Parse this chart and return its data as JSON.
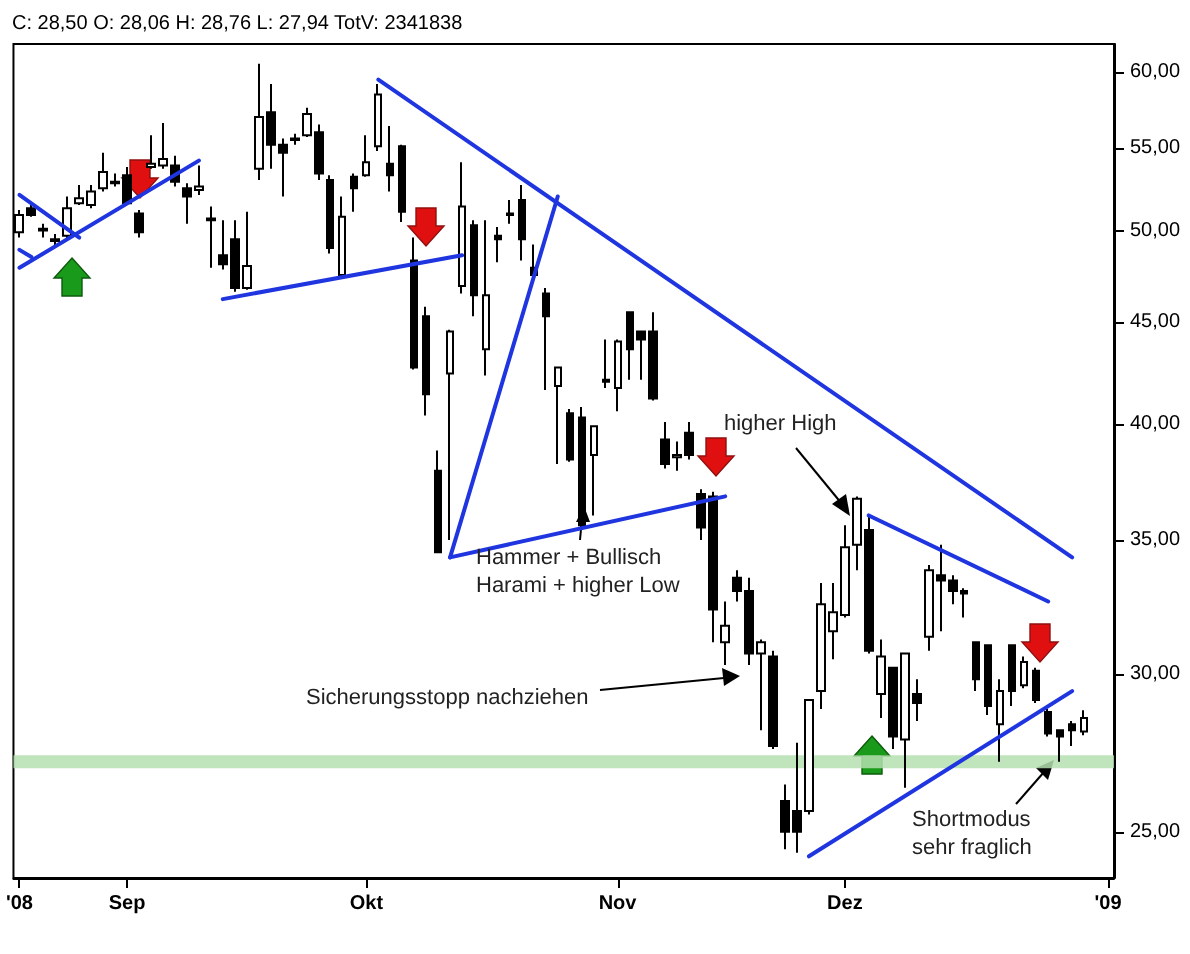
{
  "chart_data": {
    "type": "candlestick",
    "title": "C: 28,50 O: 28,06 H: 28,76 L: 27,94 TotV: 2341838",
    "categories": [
      "'08",
      null,
      null,
      null,
      null,
      null,
      null,
      null,
      null,
      "Sep",
      null,
      null,
      null,
      null,
      null,
      null,
      null,
      null,
      null,
      null,
      null,
      null,
      null,
      null,
      null,
      null,
      null,
      null,
      null,
      "Okt",
      null,
      null,
      null,
      null,
      null,
      null,
      null,
      null,
      null,
      null,
      null,
      null,
      null,
      null,
      null,
      null,
      null,
      null,
      null,
      null,
      "Nov",
      null,
      null,
      null,
      null,
      null,
      null,
      null,
      null,
      null,
      null,
      null,
      null,
      null,
      null,
      null,
      null,
      null,
      null,
      "Dez",
      null,
      null,
      null,
      null,
      null,
      null,
      null,
      null,
      null,
      null,
      null,
      null,
      null,
      null,
      null,
      null,
      null,
      null,
      null,
      null,
      null,
      "'09"
    ],
    "ohlc": [
      [
        49.9,
        51.2,
        49.6,
        50.9
      ],
      [
        51.3,
        51.5,
        50.8,
        50.9
      ],
      [
        50.1,
        50.4,
        49.6,
        50.0
      ],
      [
        49.5,
        49.8,
        49.0,
        49.4
      ],
      [
        49.7,
        52.0,
        49.5,
        51.3
      ],
      [
        51.6,
        52.7,
        51.5,
        51.9
      ],
      [
        51.5,
        52.7,
        51.3,
        52.3
      ],
      [
        52.5,
        54.7,
        52.3,
        53.5
      ],
      [
        52.8,
        53.4,
        52.6,
        52.9
      ],
      [
        53.3,
        53.8,
        51.5,
        51.6
      ],
      [
        51.0,
        51.2,
        49.6,
        49.9
      ],
      [
        53.8,
        55.8,
        53.7,
        54.0
      ],
      [
        53.9,
        56.6,
        53.7,
        54.3
      ],
      [
        53.9,
        54.5,
        52.6,
        52.9
      ],
      [
        52.5,
        52.8,
        50.4,
        52.0
      ],
      [
        52.4,
        53.9,
        52.1,
        52.6
      ],
      [
        50.7,
        51.4,
        47.9,
        50.6
      ],
      [
        48.6,
        50.6,
        47.8,
        48.1
      ],
      [
        49.5,
        50.6,
        46.6,
        46.8
      ],
      [
        46.8,
        51.1,
        46.7,
        48.0
      ],
      [
        53.7,
        60.6,
        53.0,
        57.0
      ],
      [
        57.3,
        59.2,
        53.7,
        55.2
      ],
      [
        55.2,
        55.6,
        52.0,
        54.7
      ],
      [
        55.5,
        55.9,
        55.2,
        55.6
      ],
      [
        55.8,
        57.6,
        55.7,
        57.2
      ],
      [
        56.0,
        56.5,
        53.0,
        53.4
      ],
      [
        53.0,
        53.3,
        48.7,
        49.0
      ],
      [
        47.5,
        52.0,
        47.3,
        50.8
      ],
      [
        53.2,
        53.4,
        51.1,
        52.5
      ],
      [
        53.3,
        55.8,
        53.2,
        54.1
      ],
      [
        55.1,
        59.2,
        54.8,
        58.5
      ],
      [
        54.0,
        56.4,
        52.3,
        53.3
      ],
      [
        55.1,
        55.2,
        50.5,
        51.1
      ],
      [
        48.3,
        49.6,
        42.6,
        42.7
      ],
      [
        45.3,
        45.8,
        40.4,
        41.4
      ],
      [
        37.9,
        38.8,
        34.5,
        34.5
      ],
      [
        42.4,
        44.6,
        35.0,
        44.5
      ],
      [
        46.9,
        54.1,
        46.5,
        51.4
      ],
      [
        50.3,
        50.6,
        45.3,
        46.4
      ],
      [
        43.6,
        50.6,
        42.3,
        46.4
      ],
      [
        49.7,
        50.2,
        48.2,
        49.5
      ],
      [
        51.0,
        51.8,
        50.4,
        50.9
      ],
      [
        51.8,
        52.7,
        48.3,
        49.5
      ],
      [
        47.9,
        49.2,
        47.3,
        47.5
      ],
      [
        46.5,
        46.8,
        41.6,
        45.3
      ],
      [
        41.8,
        42.7,
        38.2,
        42.7
      ],
      [
        40.5,
        40.7,
        38.3,
        38.4
      ],
      [
        40.3,
        40.8,
        35.5,
        35.6
      ],
      [
        38.6,
        39.9,
        36.0,
        39.9
      ],
      [
        42.1,
        44.1,
        41.7,
        42.0
      ],
      [
        41.7,
        44.1,
        40.6,
        44.0
      ],
      [
        45.5,
        45.5,
        42.1,
        43.6
      ],
      [
        44.5,
        44.5,
        42.1,
        44.1
      ],
      [
        44.5,
        45.5,
        41.1,
        41.2
      ],
      [
        39.3,
        40.1,
        38.0,
        38.2
      ],
      [
        38.5,
        39.2,
        37.9,
        38.6
      ],
      [
        39.6,
        40.1,
        38.4,
        38.6
      ],
      [
        36.9,
        37.1,
        35.0,
        35.5
      ],
      [
        36.8,
        37.0,
        31.1,
        32.3
      ],
      [
        31.1,
        32.6,
        30.3,
        31.7
      ],
      [
        33.5,
        33.8,
        32.6,
        33.0
      ],
      [
        33.0,
        33.5,
        30.3,
        30.7
      ],
      [
        30.7,
        31.2,
        28.1,
        31.1
      ],
      [
        30.6,
        30.8,
        27.5,
        27.6
      ],
      [
        25.9,
        26.4,
        24.5,
        25.0
      ],
      [
        25.6,
        27.7,
        24.4,
        25.0
      ],
      [
        25.6,
        29.1,
        25.5,
        29.1
      ],
      [
        29.4,
        33.3,
        28.8,
        32.5
      ],
      [
        31.5,
        33.3,
        30.5,
        32.2
      ],
      [
        32.1,
        35.6,
        32.0,
        34.7
      ],
      [
        34.8,
        36.8,
        33.8,
        36.7
      ],
      [
        35.4,
        36.0,
        30.7,
        30.8
      ],
      [
        29.3,
        31.2,
        28.5,
        30.6
      ],
      [
        30.2,
        30.2,
        27.5,
        27.9
      ],
      [
        27.8,
        30.7,
        26.3,
        30.7
      ],
      [
        29.3,
        29.8,
        28.4,
        29.0
      ],
      [
        31.3,
        34.0,
        30.8,
        33.8
      ],
      [
        33.6,
        34.8,
        31.5,
        33.4
      ],
      [
        33.4,
        33.6,
        32.5,
        33.0
      ],
      [
        33.0,
        33.1,
        32.0,
        32.9
      ],
      [
        31.1,
        31.1,
        29.4,
        29.8
      ],
      [
        31.0,
        31.0,
        28.6,
        28.9
      ],
      [
        28.3,
        29.8,
        27.1,
        29.4
      ],
      [
        31.0,
        31.0,
        28.9,
        29.4
      ],
      [
        29.6,
        30.6,
        29.5,
        30.4
      ],
      [
        30.1,
        30.2,
        29.0,
        29.1
      ],
      [
        28.7,
        28.8,
        27.9,
        28.0
      ],
      [
        28.1,
        28.1,
        27.1,
        27.9
      ],
      [
        28.3,
        28.4,
        27.6,
        28.1
      ],
      [
        28.06,
        28.76,
        27.94,
        28.5
      ],
      null,
      null
    ],
    "series": [
      {
        "type": "line",
        "color": "#1f35e0",
        "values": [
          52.1,
          null,
          null,
          null,
          null,
          49.6,
          null,
          null,
          null,
          null,
          null,
          null,
          null,
          null,
          null,
          null,
          null,
          null,
          null,
          null,
          null,
          null,
          null,
          null,
          null,
          null,
          null,
          null,
          null,
          null,
          null,
          null,
          null,
          null,
          null,
          null,
          null,
          null,
          null,
          null,
          null,
          null,
          null,
          null,
          null,
          null,
          null,
          null,
          null,
          null,
          null,
          null,
          null,
          null,
          null,
          null,
          null,
          null,
          null,
          null,
          null,
          null,
          null,
          null,
          null,
          null,
          null,
          null,
          null,
          null,
          null,
          null,
          null,
          null,
          null,
          null,
          null,
          null,
          null,
          null,
          null,
          null,
          null,
          null,
          null,
          null,
          null,
          null,
          null,
          null,
          null,
          null
        ]
      },
      {
        "type": "line",
        "color": "#1f35e0",
        "values": [
          48.9,
          48.5,
          null,
          null,
          null,
          null,
          null,
          null,
          null,
          null,
          null,
          null,
          null,
          null,
          null,
          null,
          null,
          null,
          null,
          null,
          null,
          null,
          null,
          null,
          null,
          null,
          null,
          null,
          null,
          null,
          null,
          null,
          null,
          null,
          null,
          null,
          null,
          null,
          null,
          null,
          null,
          null,
          null,
          null,
          null,
          null,
          null,
          null,
          null,
          null,
          null,
          null,
          null,
          null,
          null,
          null,
          null,
          null,
          null,
          null,
          null,
          null,
          null,
          null,
          null,
          null,
          null,
          null,
          null,
          null,
          null,
          null,
          null,
          null,
          null,
          null,
          null,
          null,
          null,
          null,
          null,
          null,
          null,
          null,
          null,
          null,
          null,
          null,
          null,
          null,
          null,
          null
        ]
      },
      {
        "type": "line",
        "color": "#1f35e0",
        "values": [
          47.9,
          null,
          null,
          null,
          null,
          null,
          null,
          null,
          null,
          null,
          null,
          null,
          null,
          null,
          null,
          54.2,
          null,
          null,
          null,
          null,
          null,
          null,
          null,
          null,
          null,
          null,
          null,
          null,
          null,
          null,
          null,
          null,
          null,
          null,
          null,
          null,
          null,
          null,
          null,
          null,
          null,
          null,
          null,
          null,
          null,
          null,
          null,
          null,
          null,
          null,
          null,
          null,
          null,
          null,
          null,
          null,
          null,
          null,
          null,
          null,
          null,
          null,
          null,
          null,
          null,
          null,
          null,
          null,
          null,
          null,
          null,
          null,
          null,
          null,
          null,
          null,
          null,
          null,
          null,
          null,
          null,
          null,
          null,
          null,
          null,
          null,
          null,
          null,
          null,
          null,
          null,
          null
        ]
      },
      {
        "type": "line",
        "color": "#1f35e0",
        "values": [
          null,
          null,
          null,
          null,
          null,
          null,
          null,
          null,
          null,
          null,
          null,
          null,
          null,
          null,
          null,
          null,
          null,
          46.2,
          null,
          null,
          null,
          null,
          null,
          null,
          null,
          null,
          null,
          null,
          null,
          null,
          null,
          null,
          null,
          null,
          null,
          null,
          null,
          48.6,
          null,
          null,
          null,
          null,
          null,
          null,
          null,
          null,
          null,
          null,
          null,
          null,
          null,
          null,
          null,
          null,
          null,
          null,
          null,
          null,
          null,
          null,
          null,
          null,
          null,
          null,
          null,
          null,
          null,
          null,
          null,
          null,
          null,
          null,
          null,
          null,
          null,
          null,
          null,
          null,
          null,
          null,
          null,
          null,
          null,
          null,
          null,
          null,
          null,
          null,
          null,
          null,
          null,
          null
        ]
      },
      {
        "type": "line",
        "color": "#1f35e0",
        "values": [
          null,
          null,
          null,
          null,
          null,
          null,
          null,
          null,
          null,
          null,
          null,
          null,
          null,
          null,
          null,
          null,
          null,
          null,
          null,
          null,
          null,
          null,
          null,
          null,
          null,
          null,
          null,
          null,
          null,
          null,
          59.5,
          null,
          null,
          null,
          null,
          null,
          null,
          null,
          null,
          null,
          null,
          null,
          null,
          null,
          null,
          null,
          null,
          null,
          null,
          null,
          null,
          null,
          null,
          null,
          null,
          null,
          null,
          null,
          null,
          null,
          null,
          null,
          null,
          null,
          null,
          null,
          null,
          null,
          null,
          null,
          null,
          null,
          null,
          null,
          null,
          null,
          null,
          null,
          null,
          null,
          null,
          null,
          null,
          null,
          null,
          null,
          null,
          null,
          34.3,
          null,
          null,
          null
        ]
      },
      {
        "type": "line",
        "color": "#1f35e0",
        "values": [
          null,
          null,
          null,
          null,
          null,
          null,
          null,
          null,
          null,
          null,
          null,
          null,
          null,
          null,
          null,
          null,
          null,
          null,
          null,
          null,
          null,
          null,
          null,
          null,
          null,
          null,
          null,
          null,
          null,
          null,
          null,
          null,
          null,
          null,
          null,
          null,
          34.3,
          null,
          null,
          null,
          null,
          null,
          null,
          null,
          null,
          52.0,
          null,
          null,
          null,
          null,
          null,
          null,
          null,
          null,
          null,
          null,
          null,
          null,
          null,
          null,
          null,
          null,
          null,
          null,
          null,
          null,
          null,
          null,
          null,
          null,
          null,
          null,
          null,
          null,
          null,
          null,
          null,
          null,
          null,
          null,
          null,
          null,
          null,
          null,
          null,
          null,
          null,
          null,
          null,
          null,
          null,
          null
        ]
      },
      {
        "type": "line",
        "color": "#1f35e0",
        "values": [
          null,
          null,
          null,
          null,
          null,
          null,
          null,
          null,
          null,
          null,
          null,
          null,
          null,
          null,
          null,
          null,
          null,
          null,
          null,
          null,
          null,
          null,
          null,
          null,
          null,
          null,
          null,
          null,
          null,
          null,
          null,
          null,
          null,
          null,
          null,
          null,
          34.3,
          null,
          null,
          null,
          null,
          null,
          null,
          null,
          null,
          null,
          null,
          null,
          null,
          null,
          null,
          null,
          null,
          null,
          null,
          null,
          null,
          null,
          null,
          36.8,
          null,
          null,
          null,
          null,
          null,
          null,
          null,
          null,
          null,
          null,
          null,
          null,
          null,
          null,
          null,
          null,
          null,
          null,
          null,
          null,
          null,
          null,
          null,
          null,
          null,
          null,
          null,
          null,
          null,
          null,
          null,
          null
        ]
      },
      {
        "type": "line",
        "color": "#1f35e0",
        "values": [
          null,
          null,
          null,
          null,
          null,
          null,
          null,
          null,
          null,
          null,
          null,
          null,
          null,
          null,
          null,
          null,
          null,
          null,
          null,
          null,
          null,
          null,
          null,
          null,
          null,
          null,
          null,
          null,
          null,
          null,
          null,
          null,
          null,
          null,
          null,
          null,
          null,
          null,
          null,
          null,
          null,
          null,
          null,
          null,
          null,
          null,
          null,
          null,
          null,
          null,
          null,
          null,
          null,
          null,
          null,
          null,
          null,
          null,
          null,
          null,
          null,
          null,
          null,
          null,
          null,
          null,
          24.3,
          null,
          null,
          null,
          null,
          null,
          null,
          null,
          null,
          null,
          null,
          null,
          null,
          null,
          null,
          null,
          null,
          null,
          null,
          null,
          null,
          null,
          29.4,
          null,
          null,
          null
        ]
      },
      {
        "type": "line",
        "color": "#1f35e0",
        "values": [
          null,
          null,
          null,
          null,
          null,
          null,
          null,
          null,
          null,
          null,
          null,
          null,
          null,
          null,
          null,
          null,
          null,
          null,
          null,
          null,
          null,
          null,
          null,
          null,
          null,
          null,
          null,
          null,
          null,
          null,
          null,
          null,
          null,
          null,
          null,
          null,
          null,
          null,
          null,
          null,
          null,
          null,
          null,
          null,
          null,
          null,
          null,
          null,
          null,
          null,
          null,
          null,
          null,
          null,
          null,
          null,
          null,
          null,
          null,
          null,
          null,
          null,
          null,
          null,
          null,
          null,
          null,
          null,
          null,
          null,
          null,
          36.0,
          null,
          null,
          null,
          null,
          null,
          null,
          null,
          null,
          null,
          null,
          null,
          null,
          null,
          null,
          32.6,
          null,
          null,
          null,
          null,
          null
        ]
      }
    ],
    "log": true,
    "ylim": [
      23.7,
      62
    ],
    "yticks": [
      {
        "value": 25,
        "label": "25,00"
      },
      {
        "value": 30,
        "label": "30,00"
      },
      {
        "value": 35,
        "label": "35,00"
      },
      {
        "value": 40,
        "label": "40,00"
      },
      {
        "value": 45,
        "label": "45,00"
      },
      {
        "value": 50,
        "label": "50,00"
      },
      {
        "value": 55,
        "label": "55,00"
      },
      {
        "value": 60,
        "label": "60,00"
      }
    ],
    "bands": [
      {
        "axis": "y",
        "from": 26.9,
        "to": 27.3,
        "color": "#b5e0b0"
      }
    ],
    "annotations": [
      "higher High",
      "Hammer + Bullisch Harami + higher Low",
      "Sicherungsstopp nachziehen",
      "Shortmodus sehr fraglich"
    ]
  }
}
